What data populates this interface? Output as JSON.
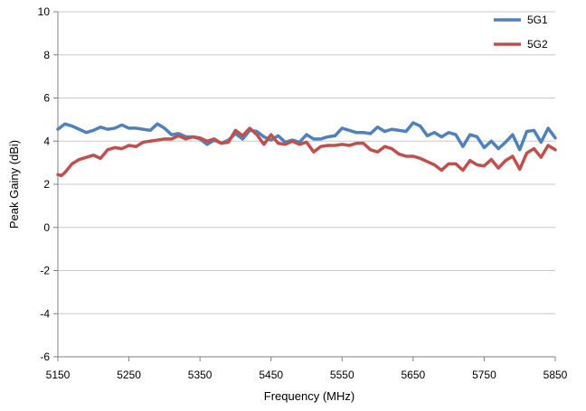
{
  "chart_data": {
    "type": "line",
    "title": "",
    "xlabel": "Frequency (MHz)",
    "ylabel": "Peak Gainy (dBi)",
    "xlim": [
      5150,
      5850
    ],
    "ylim": [
      -6,
      10
    ],
    "x_ticks": [
      "5150",
      "5250",
      "5350",
      "5450",
      "5550",
      "5650",
      "5750",
      "5850"
    ],
    "y_ticks": [
      "-6",
      "-4",
      "-2",
      "0",
      "2",
      "4",
      "6",
      "8",
      "10"
    ],
    "grid": true,
    "legend_position": "top-right",
    "colors": {
      "series1": "#4f81bd",
      "series2": "#c0504d",
      "grid": "#c8c8c8",
      "axis": "#808080"
    },
    "series": [
      {
        "name": "5G1",
        "points": [
          [
            5150,
            4.55
          ],
          [
            5160,
            4.8
          ],
          [
            5170,
            4.7
          ],
          [
            5180,
            4.55
          ],
          [
            5190,
            4.4
          ],
          [
            5200,
            4.5
          ],
          [
            5210,
            4.65
          ],
          [
            5220,
            4.55
          ],
          [
            5230,
            4.6
          ],
          [
            5240,
            4.75
          ],
          [
            5250,
            4.6
          ],
          [
            5260,
            4.6
          ],
          [
            5270,
            4.55
          ],
          [
            5280,
            4.5
          ],
          [
            5290,
            4.8
          ],
          [
            5300,
            4.6
          ],
          [
            5310,
            4.3
          ],
          [
            5320,
            4.35
          ],
          [
            5330,
            4.2
          ],
          [
            5340,
            4.2
          ],
          [
            5350,
            4.1
          ],
          [
            5360,
            3.85
          ],
          [
            5370,
            4.05
          ],
          [
            5380,
            3.9
          ],
          [
            5390,
            4.05
          ],
          [
            5400,
            4.35
          ],
          [
            5410,
            4.1
          ],
          [
            5420,
            4.5
          ],
          [
            5430,
            4.45
          ],
          [
            5440,
            4.2
          ],
          [
            5450,
            4.05
          ],
          [
            5460,
            4.25
          ],
          [
            5470,
            3.95
          ],
          [
            5480,
            4.05
          ],
          [
            5490,
            3.95
          ],
          [
            5500,
            4.3
          ],
          [
            5510,
            4.1
          ],
          [
            5520,
            4.1
          ],
          [
            5530,
            4.2
          ],
          [
            5540,
            4.25
          ],
          [
            5550,
            4.6
          ],
          [
            5560,
            4.5
          ],
          [
            5570,
            4.4
          ],
          [
            5580,
            4.4
          ],
          [
            5590,
            4.35
          ],
          [
            5600,
            4.65
          ],
          [
            5610,
            4.45
          ],
          [
            5620,
            4.55
          ],
          [
            5630,
            4.5
          ],
          [
            5640,
            4.45
          ],
          [
            5650,
            4.85
          ],
          [
            5660,
            4.7
          ],
          [
            5670,
            4.25
          ],
          [
            5680,
            4.4
          ],
          [
            5690,
            4.2
          ],
          [
            5700,
            4.4
          ],
          [
            5710,
            4.3
          ],
          [
            5720,
            3.75
          ],
          [
            5730,
            4.3
          ],
          [
            5740,
            4.2
          ],
          [
            5750,
            3.7
          ],
          [
            5760,
            4.0
          ],
          [
            5770,
            3.65
          ],
          [
            5780,
            3.95
          ],
          [
            5790,
            4.3
          ],
          [
            5800,
            3.6
          ],
          [
            5810,
            4.45
          ],
          [
            5820,
            4.5
          ],
          [
            5830,
            3.95
          ],
          [
            5840,
            4.6
          ],
          [
            5850,
            4.15
          ]
        ]
      },
      {
        "name": "5G2",
        "points": [
          [
            5150,
            2.45
          ],
          [
            5155,
            2.4
          ],
          [
            5160,
            2.55
          ],
          [
            5170,
            2.95
          ],
          [
            5180,
            3.15
          ],
          [
            5190,
            3.25
          ],
          [
            5200,
            3.35
          ],
          [
            5210,
            3.2
          ],
          [
            5220,
            3.6
          ],
          [
            5230,
            3.7
          ],
          [
            5240,
            3.65
          ],
          [
            5250,
            3.8
          ],
          [
            5260,
            3.75
          ],
          [
            5270,
            3.95
          ],
          [
            5280,
            4.0
          ],
          [
            5290,
            4.05
          ],
          [
            5300,
            4.1
          ],
          [
            5310,
            4.1
          ],
          [
            5320,
            4.25
          ],
          [
            5330,
            4.1
          ],
          [
            5340,
            4.2
          ],
          [
            5350,
            4.15
          ],
          [
            5360,
            4.0
          ],
          [
            5370,
            4.1
          ],
          [
            5380,
            3.9
          ],
          [
            5390,
            3.95
          ],
          [
            5400,
            4.5
          ],
          [
            5410,
            4.25
          ],
          [
            5420,
            4.6
          ],
          [
            5430,
            4.3
          ],
          [
            5440,
            3.85
          ],
          [
            5450,
            4.3
          ],
          [
            5460,
            3.9
          ],
          [
            5470,
            3.85
          ],
          [
            5480,
            4.0
          ],
          [
            5490,
            3.85
          ],
          [
            5500,
            3.95
          ],
          [
            5510,
            3.5
          ],
          [
            5520,
            3.75
          ],
          [
            5530,
            3.8
          ],
          [
            5540,
            3.8
          ],
          [
            5550,
            3.85
          ],
          [
            5560,
            3.8
          ],
          [
            5570,
            3.9
          ],
          [
            5580,
            3.9
          ],
          [
            5590,
            3.6
          ],
          [
            5600,
            3.5
          ],
          [
            5610,
            3.75
          ],
          [
            5620,
            3.65
          ],
          [
            5630,
            3.4
          ],
          [
            5640,
            3.3
          ],
          [
            5650,
            3.3
          ],
          [
            5660,
            3.2
          ],
          [
            5670,
            3.05
          ],
          [
            5680,
            2.9
          ],
          [
            5690,
            2.65
          ],
          [
            5700,
            2.95
          ],
          [
            5710,
            2.95
          ],
          [
            5720,
            2.65
          ],
          [
            5730,
            3.1
          ],
          [
            5740,
            2.9
          ],
          [
            5750,
            2.85
          ],
          [
            5760,
            3.15
          ],
          [
            5770,
            2.75
          ],
          [
            5780,
            3.1
          ],
          [
            5790,
            3.3
          ],
          [
            5800,
            2.7
          ],
          [
            5810,
            3.45
          ],
          [
            5820,
            3.65
          ],
          [
            5830,
            3.25
          ],
          [
            5840,
            3.8
          ],
          [
            5850,
            3.6
          ]
        ]
      }
    ]
  }
}
